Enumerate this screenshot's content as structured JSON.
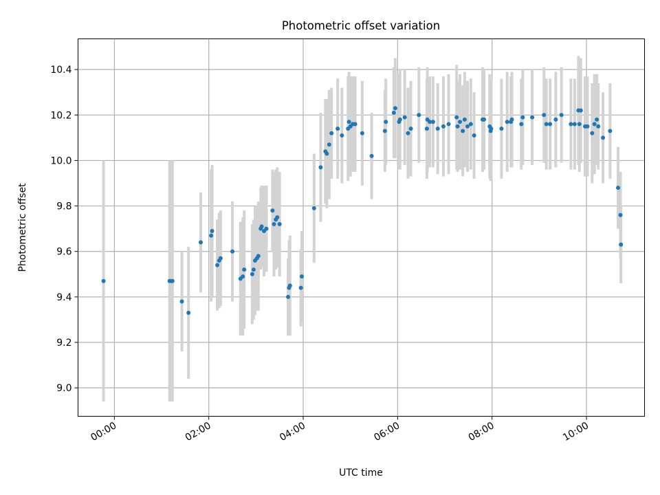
{
  "chart_data": {
    "type": "scatter",
    "title": "Photometric offset variation",
    "xlabel": "UTC time",
    "ylabel": "Photometric offset",
    "x_unit": "hours",
    "xlim": [
      -0.77,
      11.23
    ],
    "ylim": [
      8.875,
      10.535
    ],
    "x_ticks": [
      0,
      2,
      4,
      6,
      8,
      10
    ],
    "x_tick_labels": [
      "00:00",
      "02:00",
      "04:00",
      "06:00",
      "08:00",
      "10:00"
    ],
    "y_ticks": [
      9.0,
      9.2,
      9.4,
      9.6,
      9.8,
      10.0,
      10.2,
      10.4
    ],
    "y_tick_labels": [
      "9.0",
      "9.2",
      "9.4",
      "9.6",
      "9.8",
      "10.0",
      "10.2",
      "10.4"
    ],
    "grid": true,
    "colors": {
      "point": "#1f77b4",
      "errorbar": "#d3d3d3",
      "grid": "#b0b0b0"
    },
    "series": [
      {
        "x": [
          -0.23,
          1.17,
          1.2,
          1.23,
          1.43,
          1.57,
          1.83,
          2.05,
          2.07,
          2.18,
          2.22,
          2.25,
          2.5,
          2.67,
          2.72,
          2.75,
          2.92,
          2.95,
          2.98,
          3.02,
          3.05,
          3.1,
          3.12,
          3.17,
          3.22,
          3.35,
          3.38,
          3.42,
          3.45,
          3.5,
          3.68,
          3.7,
          3.72,
          3.95,
          3.97,
          4.23,
          4.37,
          4.47,
          4.5,
          4.55,
          4.6,
          4.73,
          4.82,
          4.95,
          4.97,
          5.0,
          5.05,
          5.1,
          5.25,
          5.45,
          5.73,
          5.75,
          5.92,
          5.95,
          6.03,
          6.05,
          6.15,
          6.22,
          6.28,
          6.45,
          6.62,
          6.63,
          6.68,
          6.75,
          6.85,
          6.97,
          7.08,
          7.25,
          7.27,
          7.32,
          7.38,
          7.42,
          7.48,
          7.55,
          7.62,
          7.8,
          7.83,
          7.95,
          7.97,
          7.98,
          8.2,
          8.32,
          8.4,
          8.42,
          8.62,
          8.65,
          8.85,
          9.1,
          9.15,
          9.23,
          9.35,
          9.47,
          9.67,
          9.75,
          9.83,
          9.85,
          9.88,
          9.97,
          10.02,
          10.12,
          10.17,
          10.22,
          10.25,
          10.35,
          10.5,
          10.67,
          10.72,
          10.73
        ],
        "y": [
          9.47,
          9.47,
          9.47,
          9.47,
          9.38,
          9.33,
          9.64,
          9.67,
          9.69,
          9.54,
          9.56,
          9.57,
          9.6,
          9.48,
          9.49,
          9.52,
          9.5,
          9.52,
          9.56,
          9.57,
          9.58,
          9.7,
          9.71,
          9.69,
          9.7,
          9.78,
          9.72,
          9.74,
          9.75,
          9.72,
          9.4,
          9.44,
          9.45,
          9.44,
          9.49,
          9.79,
          9.97,
          10.04,
          10.03,
          10.07,
          10.12,
          10.14,
          10.11,
          10.14,
          10.17,
          10.15,
          10.16,
          10.16,
          10.12,
          10.02,
          10.13,
          10.17,
          10.21,
          10.23,
          10.17,
          10.18,
          10.19,
          10.12,
          10.14,
          10.2,
          10.14,
          10.18,
          10.17,
          10.17,
          10.14,
          10.15,
          10.16,
          10.19,
          10.15,
          10.17,
          10.13,
          10.18,
          10.15,
          10.16,
          10.11,
          10.18,
          10.18,
          10.15,
          10.13,
          10.14,
          10.14,
          10.17,
          10.17,
          10.18,
          10.16,
          10.19,
          10.19,
          10.2,
          10.16,
          10.16,
          10.18,
          10.2,
          10.16,
          10.16,
          10.22,
          10.16,
          10.22,
          10.15,
          10.15,
          10.12,
          10.16,
          10.18,
          10.15,
          10.1,
          10.13,
          9.88,
          9.76,
          9.63
        ],
        "yerr": [
          0.53,
          0.53,
          0.53,
          0.53,
          0.22,
          0.29,
          0.22,
          0.29,
          0.29,
          0.2,
          0.21,
          0.21,
          0.22,
          0.25,
          0.26,
          0.26,
          0.22,
          0.22,
          0.24,
          0.23,
          0.24,
          0.18,
          0.18,
          0.2,
          0.19,
          0.18,
          0.23,
          0.22,
          0.22,
          0.23,
          0.17,
          0.21,
          0.22,
          0.17,
          0.2,
          0.24,
          0.24,
          0.23,
          0.24,
          0.24,
          0.2,
          0.22,
          0.21,
          0.23,
          0.22,
          0.22,
          0.21,
          0.21,
          0.23,
          0.19,
          0.18,
          0.19,
          0.2,
          0.22,
          0.21,
          0.22,
          0.21,
          0.2,
          0.21,
          0.21,
          0.22,
          0.23,
          0.2,
          0.2,
          0.2,
          0.22,
          0.22,
          0.23,
          0.2,
          0.21,
          0.2,
          0.21,
          0.2,
          0.2,
          0.19,
          0.23,
          0.22,
          0.23,
          0.22,
          0.22,
          0.22,
          0.22,
          0.2,
          0.21,
          0.2,
          0.21,
          0.21,
          0.21,
          0.2,
          0.2,
          0.21,
          0.21,
          0.2,
          0.2,
          0.24,
          0.21,
          0.23,
          0.22,
          0.22,
          0.22,
          0.22,
          0.2,
          0.19,
          0.2,
          0.21,
          0.18,
          0.19,
          0.17
        ]
      }
    ]
  }
}
